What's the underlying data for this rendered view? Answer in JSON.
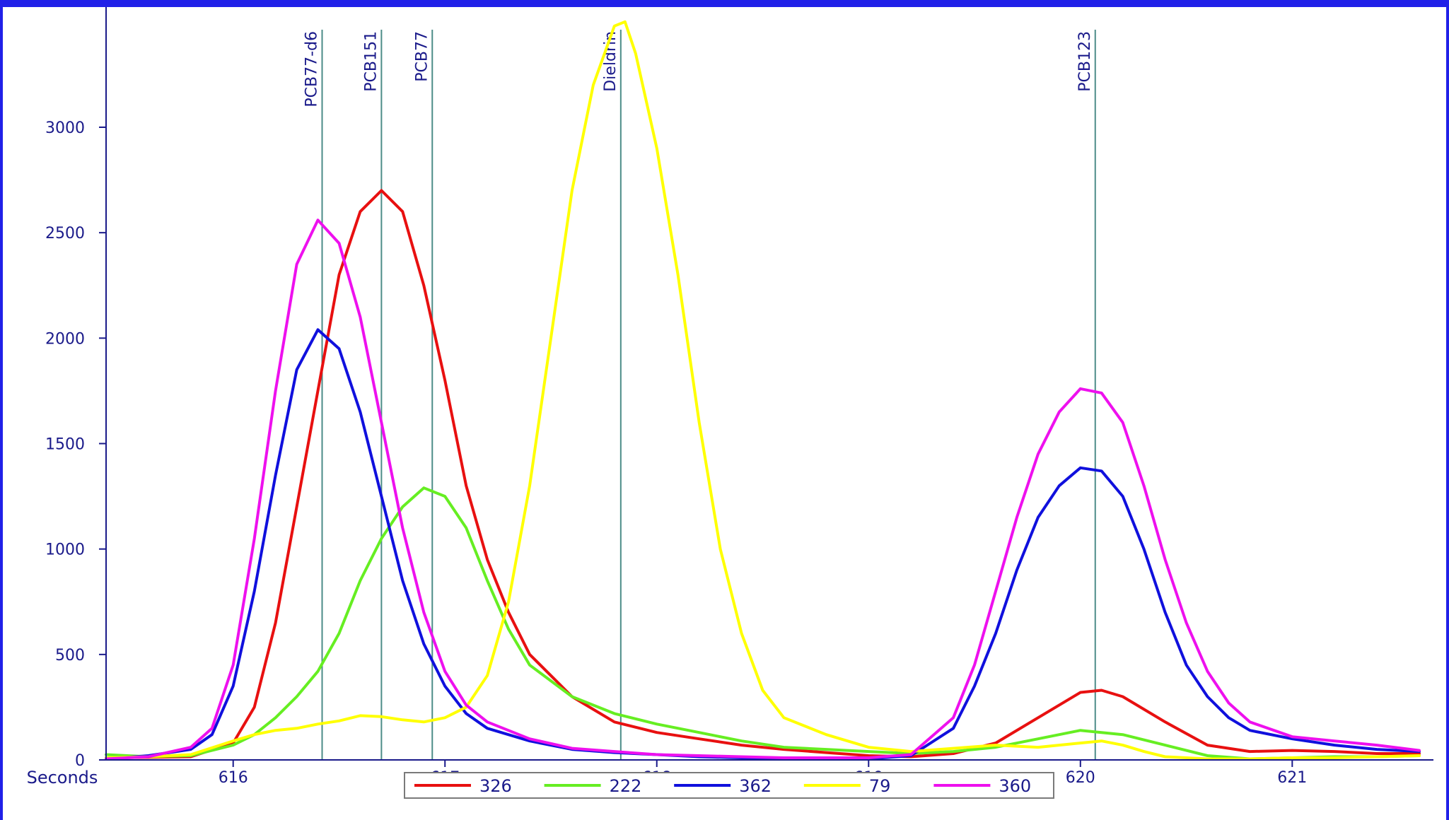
{
  "chart_data": {
    "type": "line",
    "title": "",
    "xlabel": "Seconds",
    "ylabel": "",
    "xlim": [
      615.4,
      621.65
    ],
    "ylim": [
      0,
      3500
    ],
    "x_ticks": [
      616,
      617,
      618,
      619,
      620,
      621
    ],
    "y_ticks": [
      0,
      500,
      1000,
      1500,
      2000,
      2500,
      3000
    ],
    "grid": false,
    "legend_position": "bottom",
    "peak_markers": [
      {
        "label": "PCB77-d6",
        "x": 616.42
      },
      {
        "label": "PCB151",
        "x": 616.7
      },
      {
        "label": "PCB77",
        "x": 616.94
      },
      {
        "label": "Dieldrin",
        "x": 617.83
      },
      {
        "label": "PCB123",
        "x": 620.07
      }
    ],
    "series": [
      {
        "name": "326",
        "color": "#e81010",
        "points": [
          [
            615.4,
            10
          ],
          [
            615.6,
            12
          ],
          [
            615.8,
            15
          ],
          [
            616.0,
            80
          ],
          [
            616.1,
            250
          ],
          [
            616.2,
            650
          ],
          [
            616.3,
            1200
          ],
          [
            616.4,
            1750
          ],
          [
            616.5,
            2300
          ],
          [
            616.6,
            2600
          ],
          [
            616.7,
            2700
          ],
          [
            616.8,
            2600
          ],
          [
            616.9,
            2250
          ],
          [
            617.0,
            1800
          ],
          [
            617.1,
            1300
          ],
          [
            617.2,
            950
          ],
          [
            617.3,
            700
          ],
          [
            617.4,
            500
          ],
          [
            617.6,
            300
          ],
          [
            617.8,
            180
          ],
          [
            618.0,
            130
          ],
          [
            618.2,
            100
          ],
          [
            618.4,
            70
          ],
          [
            618.6,
            50
          ],
          [
            618.8,
            35
          ],
          [
            619.0,
            20
          ],
          [
            619.2,
            15
          ],
          [
            619.4,
            30
          ],
          [
            619.6,
            80
          ],
          [
            619.8,
            200
          ],
          [
            620.0,
            320
          ],
          [
            620.1,
            330
          ],
          [
            620.2,
            300
          ],
          [
            620.4,
            180
          ],
          [
            620.6,
            70
          ],
          [
            620.8,
            40
          ],
          [
            621.0,
            45
          ],
          [
            621.2,
            40
          ],
          [
            621.4,
            30
          ],
          [
            621.6,
            30
          ]
        ]
      },
      {
        "name": "222",
        "color": "#66ee22",
        "points": [
          [
            615.4,
            25
          ],
          [
            615.6,
            15
          ],
          [
            615.8,
            20
          ],
          [
            616.0,
            70
          ],
          [
            616.1,
            120
          ],
          [
            616.2,
            200
          ],
          [
            616.3,
            300
          ],
          [
            616.4,
            420
          ],
          [
            616.5,
            600
          ],
          [
            616.6,
            850
          ],
          [
            616.7,
            1050
          ],
          [
            616.8,
            1200
          ],
          [
            616.9,
            1290
          ],
          [
            617.0,
            1250
          ],
          [
            617.1,
            1100
          ],
          [
            617.2,
            850
          ],
          [
            617.3,
            620
          ],
          [
            617.4,
            450
          ],
          [
            617.6,
            300
          ],
          [
            617.8,
            220
          ],
          [
            618.0,
            170
          ],
          [
            618.2,
            130
          ],
          [
            618.4,
            90
          ],
          [
            618.6,
            60
          ],
          [
            618.8,
            50
          ],
          [
            619.0,
            40
          ],
          [
            619.2,
            30
          ],
          [
            619.4,
            40
          ],
          [
            619.6,
            60
          ],
          [
            619.8,
            100
          ],
          [
            620.0,
            140
          ],
          [
            620.2,
            120
          ],
          [
            620.4,
            70
          ],
          [
            620.6,
            20
          ],
          [
            620.8,
            5
          ],
          [
            621.0,
            10
          ],
          [
            621.2,
            15
          ],
          [
            621.4,
            15
          ],
          [
            621.6,
            20
          ]
        ]
      },
      {
        "name": "362",
        "color": "#1010dd",
        "points": [
          [
            615.4,
            5
          ],
          [
            615.6,
            20
          ],
          [
            615.8,
            50
          ],
          [
            615.9,
            120
          ],
          [
            616.0,
            350
          ],
          [
            616.1,
            800
          ],
          [
            616.2,
            1350
          ],
          [
            616.3,
            1850
          ],
          [
            616.4,
            2040
          ],
          [
            616.5,
            1950
          ],
          [
            616.6,
            1650
          ],
          [
            616.7,
            1250
          ],
          [
            616.8,
            850
          ],
          [
            616.9,
            550
          ],
          [
            617.0,
            350
          ],
          [
            617.1,
            220
          ],
          [
            617.2,
            150
          ],
          [
            617.4,
            90
          ],
          [
            617.6,
            50
          ],
          [
            617.8,
            35
          ],
          [
            618.0,
            25
          ],
          [
            618.2,
            15
          ],
          [
            618.4,
            10
          ],
          [
            618.6,
            5
          ],
          [
            618.8,
            5
          ],
          [
            619.0,
            5
          ],
          [
            619.2,
            20
          ],
          [
            619.4,
            150
          ],
          [
            619.5,
            350
          ],
          [
            619.6,
            600
          ],
          [
            619.7,
            900
          ],
          [
            619.8,
            1150
          ],
          [
            619.9,
            1300
          ],
          [
            620.0,
            1385
          ],
          [
            620.1,
            1370
          ],
          [
            620.2,
            1250
          ],
          [
            620.3,
            1000
          ],
          [
            620.4,
            700
          ],
          [
            620.5,
            450
          ],
          [
            620.6,
            300
          ],
          [
            620.7,
            200
          ],
          [
            620.8,
            140
          ],
          [
            621.0,
            100
          ],
          [
            621.2,
            70
          ],
          [
            621.4,
            50
          ],
          [
            621.6,
            40
          ]
        ]
      },
      {
        "name": "79",
        "color": "#ffff00",
        "points": [
          [
            615.4,
            10
          ],
          [
            615.6,
            15
          ],
          [
            615.8,
            25
          ],
          [
            616.0,
            90
          ],
          [
            616.1,
            120
          ],
          [
            616.2,
            140
          ],
          [
            616.3,
            150
          ],
          [
            616.4,
            170
          ],
          [
            616.5,
            185
          ],
          [
            616.6,
            210
          ],
          [
            616.7,
            205
          ],
          [
            616.8,
            190
          ],
          [
            616.9,
            180
          ],
          [
            617.0,
            200
          ],
          [
            617.1,
            250
          ],
          [
            617.2,
            400
          ],
          [
            617.3,
            750
          ],
          [
            617.4,
            1300
          ],
          [
            617.5,
            2000
          ],
          [
            617.6,
            2700
          ],
          [
            617.7,
            3200
          ],
          [
            617.8,
            3480
          ],
          [
            617.85,
            3500
          ],
          [
            617.9,
            3350
          ],
          [
            618.0,
            2900
          ],
          [
            618.1,
            2300
          ],
          [
            618.2,
            1600
          ],
          [
            618.3,
            1000
          ],
          [
            618.4,
            600
          ],
          [
            618.5,
            330
          ],
          [
            618.6,
            200
          ],
          [
            618.8,
            120
          ],
          [
            619.0,
            60
          ],
          [
            619.2,
            40
          ],
          [
            619.4,
            55
          ],
          [
            619.6,
            70
          ],
          [
            619.8,
            60
          ],
          [
            620.0,
            80
          ],
          [
            620.1,
            90
          ],
          [
            620.2,
            70
          ],
          [
            620.3,
            40
          ],
          [
            620.4,
            15
          ],
          [
            620.6,
            5
          ],
          [
            620.8,
            5
          ],
          [
            621.0,
            10
          ],
          [
            621.2,
            10
          ],
          [
            621.4,
            15
          ],
          [
            621.6,
            20
          ]
        ]
      },
      {
        "name": "360",
        "color": "#ee10ee",
        "points": [
          [
            615.4,
            5
          ],
          [
            615.6,
            15
          ],
          [
            615.8,
            60
          ],
          [
            615.9,
            150
          ],
          [
            616.0,
            450
          ],
          [
            616.1,
            1050
          ],
          [
            616.2,
            1750
          ],
          [
            616.3,
            2350
          ],
          [
            616.4,
            2560
          ],
          [
            616.5,
            2450
          ],
          [
            616.6,
            2100
          ],
          [
            616.7,
            1600
          ],
          [
            616.8,
            1100
          ],
          [
            616.9,
            700
          ],
          [
            617.0,
            420
          ],
          [
            617.1,
            260
          ],
          [
            617.2,
            180
          ],
          [
            617.4,
            100
          ],
          [
            617.6,
            55
          ],
          [
            617.8,
            40
          ],
          [
            618.0,
            25
          ],
          [
            618.2,
            20
          ],
          [
            618.4,
            15
          ],
          [
            618.6,
            10
          ],
          [
            618.8,
            10
          ],
          [
            619.0,
            10
          ],
          [
            619.2,
            25
          ],
          [
            619.4,
            200
          ],
          [
            619.5,
            450
          ],
          [
            619.6,
            800
          ],
          [
            619.7,
            1150
          ],
          [
            619.8,
            1450
          ],
          [
            619.9,
            1650
          ],
          [
            620.0,
            1760
          ],
          [
            620.1,
            1740
          ],
          [
            620.2,
            1600
          ],
          [
            620.3,
            1300
          ],
          [
            620.4,
            950
          ],
          [
            620.5,
            650
          ],
          [
            620.6,
            420
          ],
          [
            620.7,
            270
          ],
          [
            620.8,
            180
          ],
          [
            621.0,
            110
          ],
          [
            621.2,
            90
          ],
          [
            621.4,
            70
          ],
          [
            621.6,
            45
          ]
        ]
      }
    ]
  }
}
